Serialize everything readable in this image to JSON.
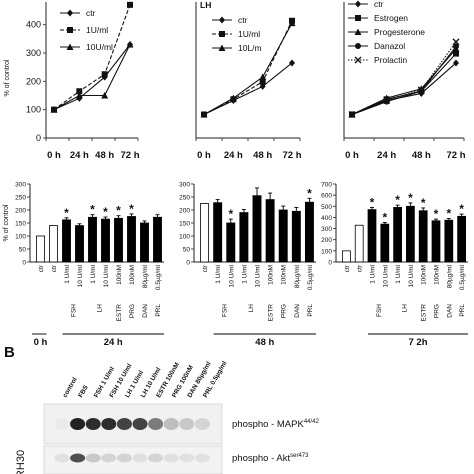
{
  "line_charts": [
    {
      "title": "",
      "ylabel": "% of control",
      "x": [
        "0 h",
        "24 h",
        "48 h",
        "72 h"
      ],
      "yticks": [
        0,
        100,
        200,
        300,
        400
      ],
      "ylim": [
        0,
        480
      ],
      "series": [
        {
          "name": "ctr",
          "marker": "diamond",
          "dash": "solid",
          "values": [
            100,
            140,
            215,
            330
          ]
        },
        {
          "name": "1U/ml",
          "marker": "square",
          "dash": "dashed",
          "values": [
            100,
            165,
            225,
            470
          ]
        },
        {
          "name": "10U/ml",
          "marker": "triangle",
          "dash": "solid",
          "values": [
            100,
            150,
            150,
            330
          ]
        }
      ]
    },
    {
      "title": "LH",
      "ylabel": "",
      "x": [
        "0 h",
        "24 h",
        "48 h",
        "72 h"
      ],
      "yticks": [],
      "ylim": [
        0,
        580
      ],
      "series": [
        {
          "name": "ctr",
          "marker": "diamond",
          "dash": "solid",
          "values": [
            100,
            160,
            220,
            320
          ]
        },
        {
          "name": "1U/ml",
          "marker": "square",
          "dash": "dashed",
          "values": [
            100,
            165,
            240,
            500
          ]
        },
        {
          "name": "10L/m",
          "marker": "triangle",
          "dash": "solid",
          "values": [
            100,
            170,
            260,
            490
          ]
        }
      ]
    },
    {
      "title": "",
      "ylabel": "",
      "x": [
        "0 h",
        "24 h",
        "48 h",
        "72 h"
      ],
      "yticks": [],
      "ylim": [
        0,
        580
      ],
      "series": [
        {
          "name": "ctr",
          "marker": "diamond",
          "dash": "solid",
          "values": [
            100,
            160,
            190,
            320
          ]
        },
        {
          "name": "Estrogen",
          "marker": "square",
          "dash": "solid",
          "values": [
            100,
            165,
            200,
            360
          ]
        },
        {
          "name": "Progesterone",
          "marker": "triangle",
          "dash": "solid",
          "values": [
            100,
            170,
            210,
            380
          ]
        },
        {
          "name": "Danazol",
          "marker": "circle",
          "dash": "solid",
          "values": [
            100,
            155,
            200,
            390
          ]
        },
        {
          "name": "Prolactin",
          "marker": "x",
          "dash": "dotted",
          "values": [
            100,
            160,
            205,
            410
          ]
        }
      ]
    }
  ],
  "bar_charts": [
    {
      "ylabel": "% of control",
      "yticks": [
        0,
        50,
        100,
        150,
        200,
        250,
        300
      ],
      "ylim": [
        0,
        300
      ],
      "time": "24 h",
      "baseline_time": "0 h",
      "categories": [
        "ctr",
        "ctr",
        "1 U/ml",
        "10 U/ml",
        "1 U/ml",
        "10 U/ml",
        "100nM",
        "100nM",
        "80µg/ml",
        "0.5µg/ml"
      ],
      "values": [
        100,
        140,
        162,
        140,
        172,
        165,
        168,
        175,
        150,
        172
      ],
      "errors": [
        0,
        0,
        8,
        7,
        10,
        8,
        10,
        10,
        8,
        10
      ],
      "significant": [
        false,
        false,
        true,
        false,
        true,
        true,
        true,
        true,
        false,
        false
      ],
      "open_bar": [
        true,
        true,
        false,
        false,
        false,
        false,
        false,
        false,
        false,
        false
      ],
      "groups": [
        {
          "label": "FSH",
          "from": 2,
          "to": 3
        },
        {
          "label": "LH",
          "from": 4,
          "to": 5
        },
        {
          "label": "ESTR",
          "from": 6,
          "to": 6
        },
        {
          "label": "PRG",
          "from": 7,
          "to": 7
        },
        {
          "label": "DAN",
          "from": 8,
          "to": 8
        },
        {
          "label": "PRL",
          "from": 9,
          "to": 9
        }
      ]
    },
    {
      "ylabel": "",
      "yticks": [
        0,
        50,
        100,
        150,
        200,
        250,
        300
      ],
      "ylim": [
        0,
        300
      ],
      "time": "48 h",
      "baseline_time": "",
      "categories": [
        "ctr",
        "1 U/ml",
        "10 U/ml",
        "1 U/ml",
        "10 U/ml",
        "100nM",
        "100nM",
        "80µg/ml",
        "0.5µg/ml"
      ],
      "values": [
        225,
        228,
        150,
        190,
        255,
        240,
        200,
        195,
        230
      ],
      "errors": [
        0,
        12,
        15,
        12,
        30,
        25,
        15,
        15,
        15
      ],
      "significant": [
        false,
        false,
        true,
        false,
        false,
        false,
        false,
        false,
        true
      ],
      "open_bar": [
        true,
        false,
        false,
        false,
        false,
        false,
        false,
        false,
        false
      ],
      "groups": [
        {
          "label": "FSH",
          "from": 1,
          "to": 2
        },
        {
          "label": "LH",
          "from": 3,
          "to": 4
        },
        {
          "label": "ESTR",
          "from": 5,
          "to": 5
        },
        {
          "label": "PRG",
          "from": 6,
          "to": 6
        },
        {
          "label": "DAN",
          "from": 7,
          "to": 7
        },
        {
          "label": "PRL",
          "from": 8,
          "to": 8
        }
      ]
    },
    {
      "ylabel": "",
      "yticks": [
        0,
        100,
        200,
        300,
        400,
        500,
        600,
        700
      ],
      "ylim": [
        0,
        700
      ],
      "time": "7 2h",
      "baseline_time": "",
      "categories": [
        "ctr",
        "ctr",
        "1 U/ml",
        "10 U/ml",
        "1 U/ml",
        "10 U/ml",
        "100nM",
        "100nM",
        "80µg/ml",
        "0.5µg/ml"
      ],
      "values": [
        100,
        330,
        470,
        340,
        490,
        500,
        460,
        370,
        375,
        410
      ],
      "errors": [
        0,
        0,
        20,
        15,
        20,
        30,
        25,
        15,
        15,
        20
      ],
      "significant": [
        false,
        false,
        true,
        true,
        true,
        true,
        true,
        true,
        true,
        true
      ],
      "open_bar": [
        true,
        true,
        false,
        false,
        false,
        false,
        false,
        false,
        false,
        false
      ],
      "groups": [
        {
          "label": "FSH",
          "from": 2,
          "to": 3
        },
        {
          "label": "LH",
          "from": 4,
          "to": 5
        },
        {
          "label": "ESTR",
          "from": 6,
          "to": 6
        },
        {
          "label": "PRG",
          "from": 7,
          "to": 7
        },
        {
          "label": "DAN",
          "from": 8,
          "to": 8
        },
        {
          "label": "PRL",
          "from": 9,
          "to": 9
        }
      ]
    }
  ],
  "blot": {
    "panel_label": "B",
    "cell_line": "RH30",
    "lanes": [
      "control",
      "FBS",
      "FSH 1 U/ml",
      "FSH 10 U/ml",
      "LH 1 U/ml",
      "LH 10 U/ml",
      "ESTR 100nM",
      "PRG 100nM",
      "DAN 80µg/ml",
      "PRL 0.5µg/ml"
    ],
    "rows": [
      {
        "label": "phospho - MAPK",
        "sup": "44/42",
        "intensity": [
          0.05,
          0.95,
          0.9,
          0.9,
          0.8,
          0.8,
          0.55,
          0.25,
          0.2,
          0.15
        ]
      },
      {
        "label": "phospho - Akt",
        "sup": "ser473",
        "intensity": [
          0.1,
          0.75,
          0.2,
          0.15,
          0.15,
          0.1,
          0.15,
          0.1,
          0.1,
          0.1
        ]
      }
    ]
  }
}
